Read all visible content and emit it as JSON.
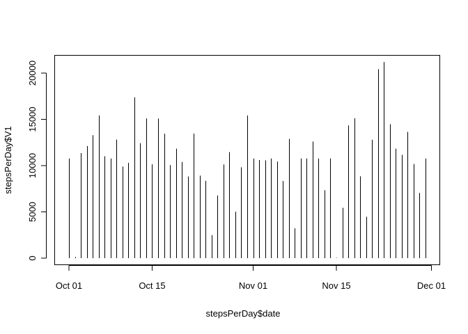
{
  "chart_data": {
    "type": "bar",
    "style": "histogram-lines",
    "xlabel": "stepsPerDay$date",
    "ylabel": "stepsPerDay$V1",
    "x_ticks": [
      "Oct 01",
      "Oct 15",
      "Nov 01",
      "Nov 15",
      "Dec 01"
    ],
    "y_ticks": [
      0,
      5000,
      10000,
      15000,
      20000
    ],
    "xlim": [
      "2012-09-29",
      "2012-12-01"
    ],
    "ylim": [
      0,
      21194
    ],
    "grid": false,
    "x": [
      "2012-10-01",
      "2012-10-02",
      "2012-10-03",
      "2012-10-04",
      "2012-10-05",
      "2012-10-06",
      "2012-10-07",
      "2012-10-08",
      "2012-10-09",
      "2012-10-10",
      "2012-10-11",
      "2012-10-12",
      "2012-10-13",
      "2012-10-14",
      "2012-10-15",
      "2012-10-16",
      "2012-10-17",
      "2012-10-18",
      "2012-10-19",
      "2012-10-20",
      "2012-10-21",
      "2012-10-22",
      "2012-10-23",
      "2012-10-24",
      "2012-10-25",
      "2012-10-26",
      "2012-10-27",
      "2012-10-28",
      "2012-10-29",
      "2012-10-30",
      "2012-10-31",
      "2012-11-01",
      "2012-11-02",
      "2012-11-03",
      "2012-11-04",
      "2012-11-05",
      "2012-11-06",
      "2012-11-07",
      "2012-11-08",
      "2012-11-09",
      "2012-11-10",
      "2012-11-11",
      "2012-11-12",
      "2012-11-13",
      "2012-11-14",
      "2012-11-15",
      "2012-11-16",
      "2012-11-17",
      "2012-11-18",
      "2012-11-19",
      "2012-11-20",
      "2012-11-21",
      "2012-11-22",
      "2012-11-23",
      "2012-11-24",
      "2012-11-25",
      "2012-11-26",
      "2012-11-27",
      "2012-11-28",
      "2012-11-29",
      "2012-11-30"
    ],
    "values": [
      10766,
      126,
      11352,
      12116,
      13294,
      15420,
      11015,
      10766,
      12811,
      9900,
      10304,
      17382,
      12426,
      15098,
      10139,
      15084,
      13452,
      10056,
      11829,
      10395,
      8821,
      13460,
      8918,
      8355,
      2492,
      6778,
      10119,
      11458,
      5018,
      9819,
      15414,
      10766,
      10600,
      10571,
      10766,
      10439,
      8334,
      12883,
      3219,
      10766,
      10766,
      12608,
      10765,
      7336,
      10766,
      41,
      5441,
      14339,
      15110,
      8841,
      4472,
      12787,
      20427,
      21194,
      14478,
      11834,
      11162,
      13646,
      10183,
      7047,
      10766
    ]
  }
}
